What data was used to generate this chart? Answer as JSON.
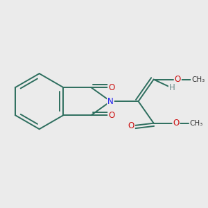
{
  "bg_color": "#ebebeb",
  "bond_color": "#2d6e5e",
  "bond_width": 1.4,
  "atom_colors": {
    "N": "#1a1aee",
    "O": "#cc1111",
    "H": "#6a8a8a"
  },
  "font_size_atom": 8.5,
  "font_size_methyl": 7.5,
  "scale": 1.0
}
